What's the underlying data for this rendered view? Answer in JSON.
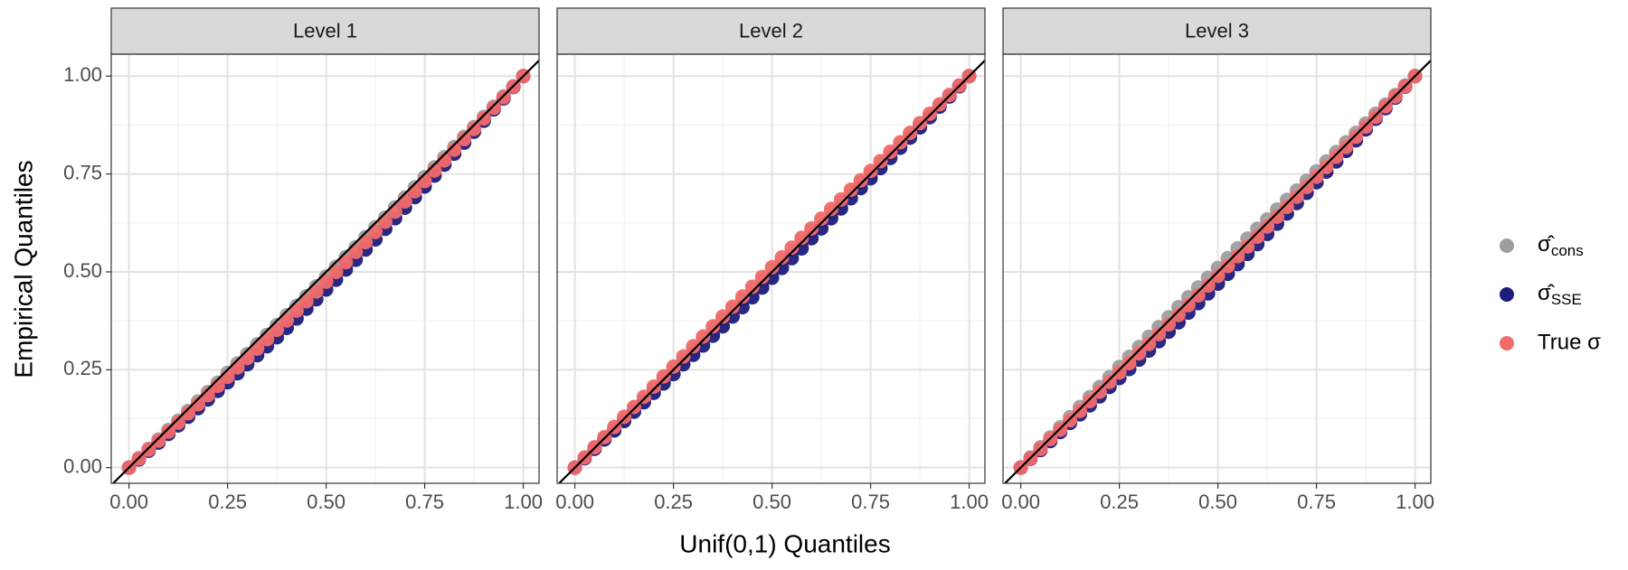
{
  "chart_data": [
    {
      "type": "scatter",
      "title": "Level 1",
      "ylabel": "Empirical Quantiles",
      "xlabel": "Unif(0,1) Quantiles",
      "x": [
        0,
        0.025,
        0.05,
        0.075,
        0.1,
        0.125,
        0.15,
        0.175,
        0.2,
        0.225,
        0.25,
        0.275,
        0.3,
        0.325,
        0.35,
        0.375,
        0.4,
        0.425,
        0.45,
        0.475,
        0.5,
        0.525,
        0.55,
        0.575,
        0.6,
        0.625,
        0.65,
        0.675,
        0.7,
        0.725,
        0.75,
        0.775,
        0.8,
        0.825,
        0.85,
        0.875,
        0.9,
        0.925,
        0.95,
        0.975,
        1
      ],
      "series": [
        {
          "name": "σ̂cons",
          "color": "#9e9e9e",
          "values": [
            0,
            0.024,
            0.048,
            0.072,
            0.096,
            0.12,
            0.145,
            0.169,
            0.193,
            0.217,
            0.242,
            0.266,
            0.29,
            0.315,
            0.339,
            0.364,
            0.389,
            0.413,
            0.438,
            0.463,
            0.488,
            0.513,
            0.538,
            0.563,
            0.589,
            0.614,
            0.639,
            0.665,
            0.69,
            0.716,
            0.742,
            0.767,
            0.793,
            0.819,
            0.845,
            0.87,
            0.896,
            0.922,
            0.948,
            0.974,
            1
          ]
        },
        {
          "name": "σ̂SSE",
          "color": "#1c1c7c",
          "values": [
            0,
            0.021,
            0.043,
            0.064,
            0.086,
            0.108,
            0.13,
            0.152,
            0.174,
            0.196,
            0.218,
            0.241,
            0.264,
            0.287,
            0.31,
            0.333,
            0.357,
            0.381,
            0.406,
            0.43,
            0.455,
            0.48,
            0.506,
            0.531,
            0.557,
            0.583,
            0.61,
            0.637,
            0.664,
            0.691,
            0.718,
            0.746,
            0.774,
            0.802,
            0.83,
            0.858,
            0.886,
            0.915,
            0.943,
            0.972,
            1
          ]
        },
        {
          "name": "True σ",
          "color": "#f26b6b",
          "values": [
            0,
            0.023,
            0.046,
            0.069,
            0.092,
            0.115,
            0.139,
            0.162,
            0.185,
            0.209,
            0.232,
            0.256,
            0.28,
            0.304,
            0.328,
            0.352,
            0.376,
            0.401,
            0.425,
            0.45,
            0.475,
            0.5,
            0.525,
            0.551,
            0.576,
            0.602,
            0.628,
            0.654,
            0.68,
            0.706,
            0.732,
            0.759,
            0.785,
            0.812,
            0.839,
            0.865,
            0.892,
            0.919,
            0.946,
            0.973,
            1
          ]
        }
      ],
      "xlim": [
        -0.045,
        1.04
      ],
      "ylim": [
        -0.04,
        1.056
      ],
      "xticks": [
        {
          "value": 0,
          "label": "0.00"
        },
        0.25,
        {
          "value": 0.5,
          "label": "0.50"
        },
        0.75,
        {
          "value": 1,
          "label": "1.00"
        }
      ],
      "yticks": [
        {
          "value": 0,
          "label": "0.00"
        },
        0.25,
        {
          "value": 0.5,
          "label": "0.50"
        },
        0.75,
        {
          "value": 1,
          "label": "1.00"
        }
      ],
      "grid": true
    },
    {
      "type": "scatter",
      "title": "Level 2",
      "x": [
        0,
        0.025,
        0.05,
        0.075,
        0.1,
        0.125,
        0.15,
        0.175,
        0.2,
        0.225,
        0.25,
        0.275,
        0.3,
        0.325,
        0.35,
        0.375,
        0.4,
        0.425,
        0.45,
        0.475,
        0.5,
        0.525,
        0.55,
        0.575,
        0.6,
        0.625,
        0.65,
        0.675,
        0.7,
        0.725,
        0.75,
        0.775,
        0.8,
        0.825,
        0.85,
        0.875,
        0.9,
        0.925,
        0.95,
        0.975,
        1
      ],
      "series": [
        {
          "name": "σ̂cons",
          "color": "#9e9e9e",
          "values": [
            0,
            0.025,
            0.051,
            0.076,
            0.101,
            0.127,
            0.152,
            0.177,
            0.202,
            0.228,
            0.253,
            0.278,
            0.303,
            0.328,
            0.354,
            0.379,
            0.404,
            0.429,
            0.454,
            0.479,
            0.504,
            0.529,
            0.554,
            0.579,
            0.604,
            0.629,
            0.654,
            0.679,
            0.703,
            0.728,
            0.753,
            0.778,
            0.802,
            0.827,
            0.852,
            0.877,
            0.902,
            0.926,
            0.951,
            0.975,
            1
          ]
        },
        {
          "name": "σ̂SSE",
          "color": "#1c1c7c",
          "values": [
            0,
            0.024,
            0.048,
            0.072,
            0.095,
            0.119,
            0.143,
            0.167,
            0.191,
            0.215,
            0.239,
            0.264,
            0.288,
            0.312,
            0.337,
            0.361,
            0.386,
            0.41,
            0.435,
            0.46,
            0.485,
            0.51,
            0.535,
            0.56,
            0.586,
            0.611,
            0.637,
            0.662,
            0.688,
            0.714,
            0.739,
            0.765,
            0.791,
            0.817,
            0.843,
            0.869,
            0.895,
            0.922,
            0.948,
            0.974,
            1
          ]
        },
        {
          "name": "True σ",
          "color": "#f26b6b",
          "values": [
            0,
            0.026,
            0.052,
            0.078,
            0.104,
            0.13,
            0.155,
            0.181,
            0.207,
            0.233,
            0.258,
            0.284,
            0.31,
            0.335,
            0.361,
            0.386,
            0.411,
            0.437,
            0.462,
            0.487,
            0.512,
            0.537,
            0.562,
            0.587,
            0.611,
            0.636,
            0.661,
            0.685,
            0.71,
            0.734,
            0.758,
            0.783,
            0.807,
            0.831,
            0.855,
            0.88,
            0.904,
            0.928,
            0.952,
            0.976,
            1
          ]
        }
      ],
      "xlim": [
        -0.045,
        1.04
      ],
      "ylim": [
        -0.04,
        1.056
      ],
      "xticks": [
        {
          "value": 0,
          "label": "0.00"
        },
        0.25,
        {
          "value": 0.5,
          "label": "0.50"
        },
        0.75,
        {
          "value": 1,
          "label": "1.00"
        }
      ],
      "grid": true
    },
    {
      "type": "scatter",
      "title": "Level 3",
      "x": [
        0,
        0.025,
        0.05,
        0.075,
        0.1,
        0.125,
        0.15,
        0.175,
        0.2,
        0.225,
        0.25,
        0.275,
        0.3,
        0.325,
        0.35,
        0.375,
        0.4,
        0.425,
        0.45,
        0.475,
        0.5,
        0.525,
        0.55,
        0.575,
        0.6,
        0.625,
        0.65,
        0.675,
        0.7,
        0.725,
        0.75,
        0.775,
        0.8,
        0.825,
        0.85,
        0.875,
        0.9,
        0.925,
        0.95,
        0.975,
        1
      ],
      "series": [
        {
          "name": "σ̂cons",
          "color": "#9e9e9e",
          "values": [
            0,
            0.026,
            0.052,
            0.077,
            0.103,
            0.129,
            0.155,
            0.18,
            0.206,
            0.231,
            0.257,
            0.283,
            0.308,
            0.334,
            0.359,
            0.384,
            0.41,
            0.435,
            0.46,
            0.485,
            0.51,
            0.535,
            0.56,
            0.585,
            0.61,
            0.634,
            0.659,
            0.684,
            0.708,
            0.733,
            0.757,
            0.782,
            0.806,
            0.831,
            0.855,
            0.879,
            0.904,
            0.927,
            0.952,
            0.976,
            1
          ]
        },
        {
          "name": "σ̂SSE",
          "color": "#1c1c7c",
          "values": [
            0,
            0.023,
            0.045,
            0.068,
            0.091,
            0.114,
            0.136,
            0.159,
            0.182,
            0.206,
            0.229,
            0.252,
            0.276,
            0.299,
            0.323,
            0.347,
            0.371,
            0.396,
            0.42,
            0.445,
            0.47,
            0.495,
            0.52,
            0.546,
            0.571,
            0.597,
            0.623,
            0.649,
            0.676,
            0.702,
            0.729,
            0.756,
            0.782,
            0.809,
            0.836,
            0.864,
            0.891,
            0.918,
            0.945,
            0.973,
            1
          ]
        },
        {
          "name": "True σ",
          "color": "#f26b6b",
          "values": [
            0,
            0.024,
            0.048,
            0.073,
            0.097,
            0.121,
            0.145,
            0.17,
            0.194,
            0.219,
            0.243,
            0.267,
            0.292,
            0.316,
            0.341,
            0.366,
            0.39,
            0.415,
            0.44,
            0.465,
            0.49,
            0.515,
            0.54,
            0.565,
            0.59,
            0.616,
            0.641,
            0.666,
            0.692,
            0.717,
            0.743,
            0.768,
            0.794,
            0.819,
            0.845,
            0.871,
            0.896,
            0.923,
            0.948,
            0.974,
            1
          ]
        }
      ],
      "xlim": [
        -0.045,
        1.04
      ],
      "ylim": [
        -0.04,
        1.056
      ],
      "xticks": [
        {
          "value": 0,
          "label": "0.00"
        },
        0.25,
        {
          "value": 0.5,
          "label": "0.50"
        },
        0.75,
        {
          "value": 1,
          "label": "1.00"
        }
      ],
      "grid": true
    }
  ]
}
